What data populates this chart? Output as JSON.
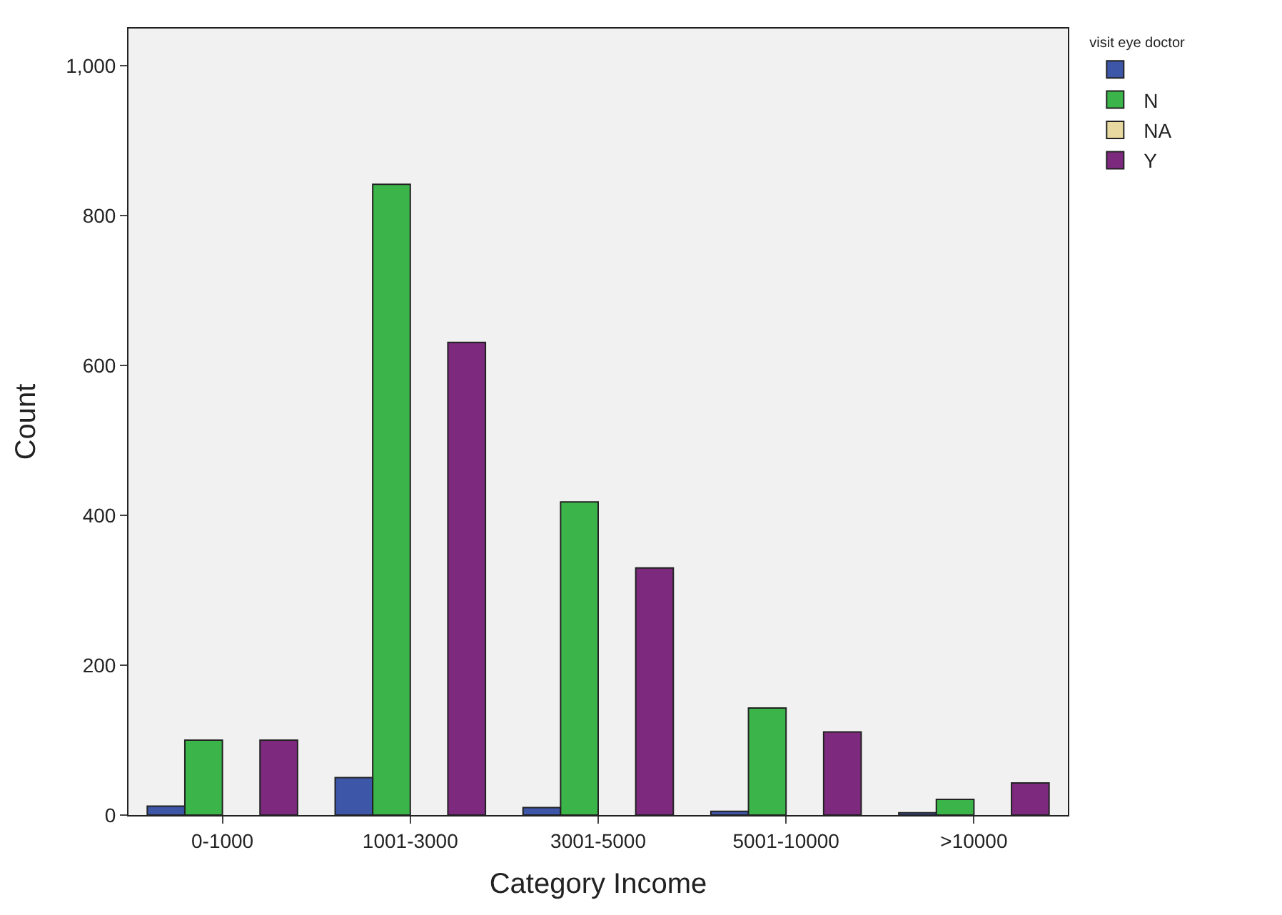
{
  "chart_data": {
    "type": "bar",
    "xlabel": "Category Income",
    "ylabel": "Count",
    "legend_title": "visit eye doctor",
    "legend": "top right",
    "categories": [
      "0-1000",
      "1001-3000",
      "3001-5000",
      "5001-10000",
      ">10000"
    ],
    "series": [
      {
        "color": "#3e56a8",
        "values": [
          12,
          50,
          10,
          5,
          3
        ]
      },
      {
        "name": "N",
        "color": "#3bb54a",
        "values": [
          100,
          842,
          418,
          143,
          21
        ]
      },
      {
        "name": "NA",
        "color": "#e8d9a0",
        "values": [
          null,
          null,
          null,
          null,
          null
        ]
      },
      {
        "name": "Y",
        "color": "#7d2a7e",
        "values": [
          100,
          631,
          330,
          111,
          43
        ]
      }
    ],
    "ylim": [
      0,
      1050
    ],
    "yticks": [
      0,
      200,
      400,
      600,
      800,
      {
        "value": 1000,
        "label": "1,000"
      }
    ],
    "grid": false
  }
}
